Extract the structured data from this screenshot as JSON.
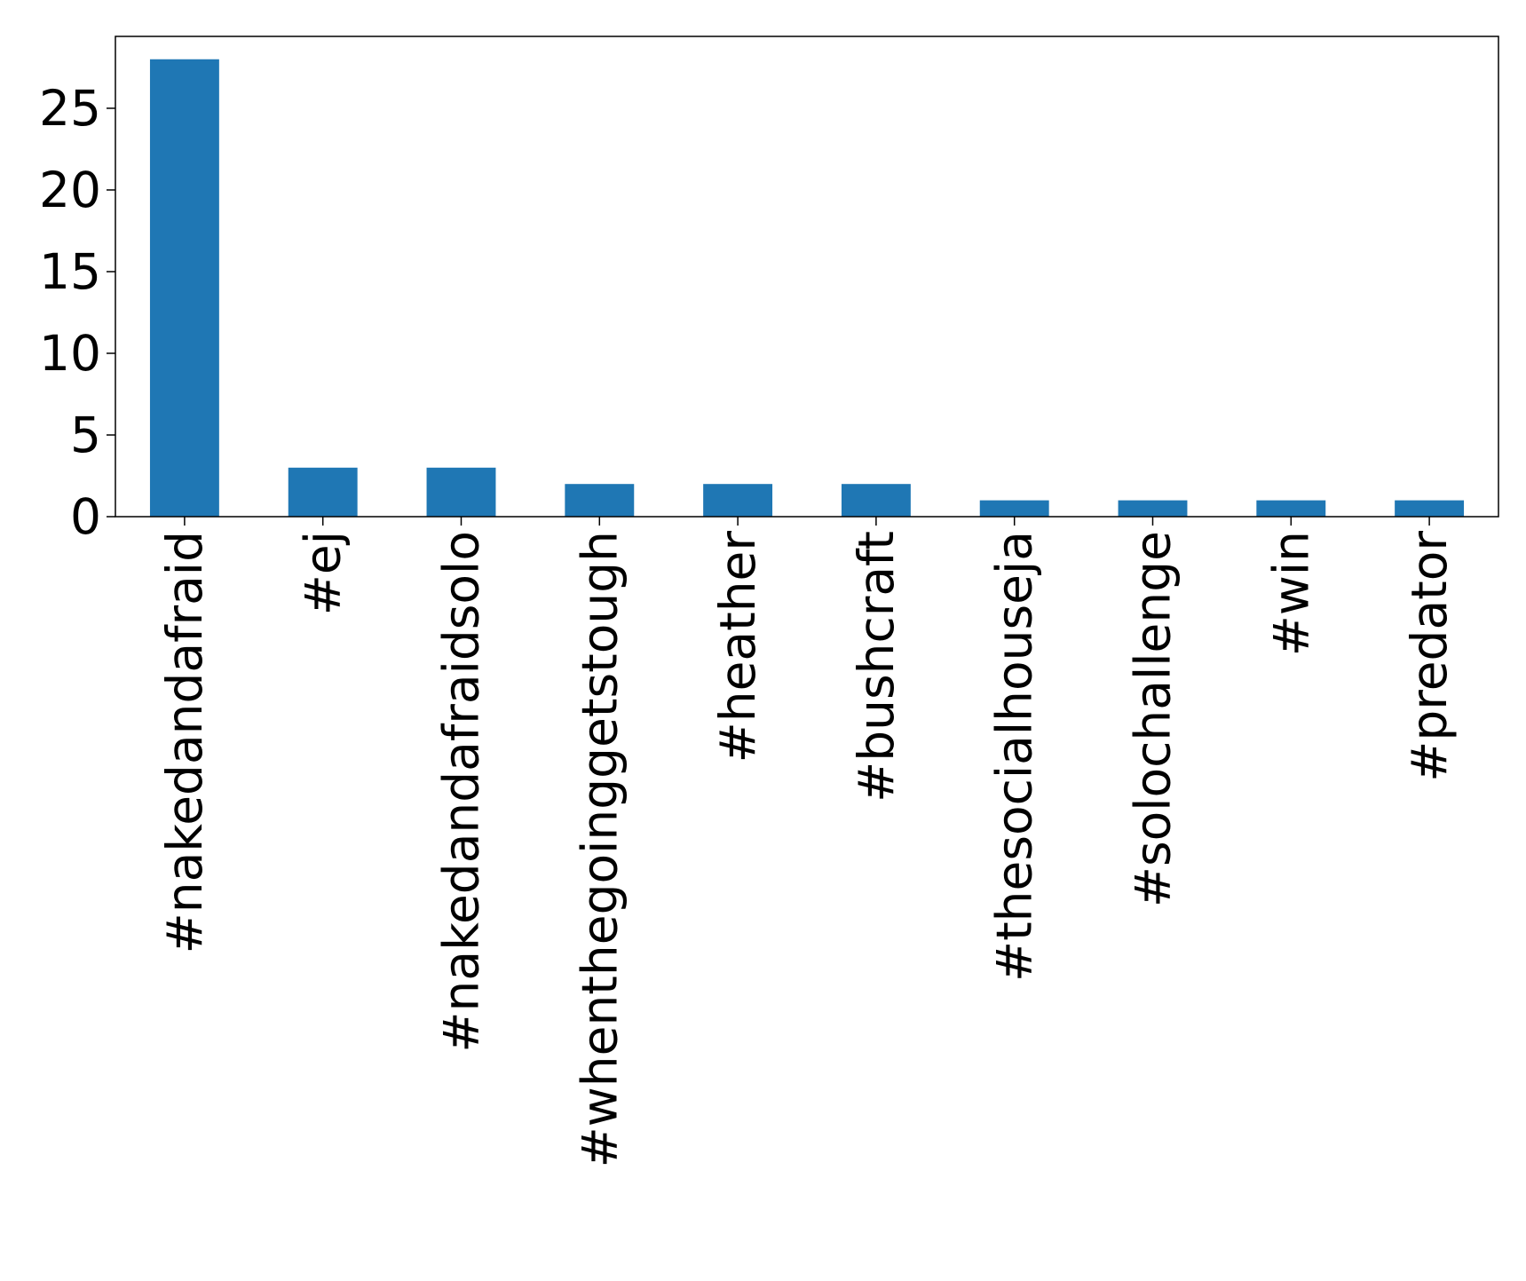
{
  "chart_data": {
    "type": "bar",
    "categories": [
      "#nakedandafraid",
      "#ej",
      "#nakedandafraidsolo",
      "#whenthegoinggetstough",
      "#heather",
      "#bushcraft",
      "#thesocialhouseja",
      "#solochallenge",
      "#win",
      "#predator"
    ],
    "values": [
      28,
      3,
      3,
      2,
      2,
      2,
      1,
      1,
      1,
      1
    ],
    "color": "#1f77b4",
    "ylim": [
      0,
      29.4
    ],
    "yticks": [
      0,
      5,
      10,
      15,
      20,
      25
    ],
    "grid": false
  }
}
